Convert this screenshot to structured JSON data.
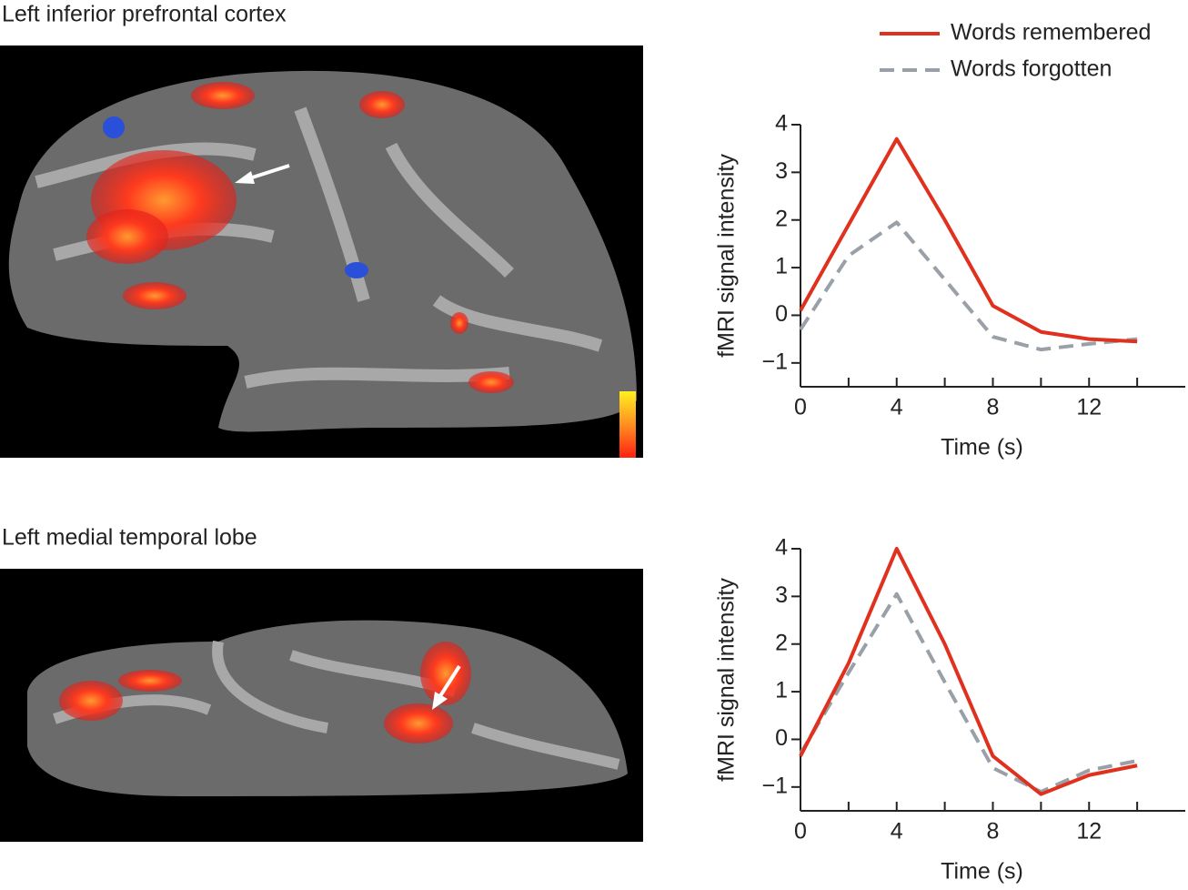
{
  "images": [
    {
      "label": "Left inferior prefrontal cortex"
    },
    {
      "label": "Left medial temporal lobe"
    }
  ],
  "chart_data": [
    {
      "type": "line",
      "x": [
        0,
        2,
        4,
        6,
        8,
        10,
        12,
        14
      ],
      "series": [
        {
          "name": "Words remembered",
          "color": "#e0301e",
          "dash": false,
          "values": [
            0.1,
            1.9,
            3.7,
            2.0,
            0.2,
            -0.35,
            -0.5,
            -0.55
          ]
        },
        {
          "name": "Words forgotten",
          "color": "#9aa0a8",
          "dash": true,
          "values": [
            -0.3,
            1.25,
            1.95,
            0.75,
            -0.45,
            -0.72,
            -0.6,
            -0.5
          ]
        }
      ],
      "xlabel": "Time (s)",
      "ylabel": "fMRI signal intensity",
      "xlim": [
        0,
        16
      ],
      "ylim": [
        -1.5,
        4
      ],
      "xticks": [
        0,
        4,
        8,
        12
      ],
      "xminor_ticks": [
        2,
        6,
        10,
        14
      ],
      "yticks": [
        -1,
        0,
        1,
        2,
        3,
        4
      ],
      "yticklabels": [
        "−1",
        "0",
        "1",
        "2",
        "3",
        "4"
      ]
    },
    {
      "type": "line",
      "x": [
        0,
        2,
        4,
        6,
        8,
        10,
        12,
        14
      ],
      "series": [
        {
          "color": "#e0301e",
          "dash": false,
          "values": [
            -0.35,
            1.6,
            4.0,
            2.0,
            -0.35,
            -1.15,
            -0.75,
            -0.55
          ]
        },
        {
          "color": "#9aa0a8",
          "dash": true,
          "values": [
            -0.3,
            1.4,
            3.05,
            1.2,
            -0.6,
            -1.1,
            -0.65,
            -0.45
          ]
        }
      ],
      "xlabel": "Time (s)",
      "ylabel": "fMRI signal intensity",
      "xlim": [
        0,
        16
      ],
      "ylim": [
        -1.5,
        4
      ],
      "xticks": [
        0,
        4,
        8,
        12
      ],
      "xminor_ticks": [
        2,
        6,
        10,
        14
      ],
      "yticks": [
        -1,
        0,
        1,
        2,
        3,
        4
      ],
      "yticklabels": [
        "−1",
        "0",
        "1",
        "2",
        "3",
        "4"
      ]
    }
  ]
}
